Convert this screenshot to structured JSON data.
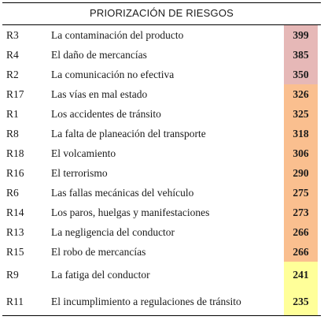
{
  "table": {
    "title": "PRIORIZACIÓN DE RIESGOS",
    "colors": {
      "high": "#e6b8b7",
      "medium": "#fabf8f",
      "low": "#ffff99"
    },
    "rows": [
      {
        "id": "R3",
        "description": "La contaminación del producto",
        "score": "399",
        "level": "high"
      },
      {
        "id": "R4",
        "description": "El daño de mercancías",
        "score": "385",
        "level": "high"
      },
      {
        "id": "R2",
        "description": "La comunicación no efectiva",
        "score": "350",
        "level": "high"
      },
      {
        "id": "R17",
        "description": "Las vías en mal estado",
        "score": "326",
        "level": "medium"
      },
      {
        "id": "R1",
        "description": "Los accidentes de tránsito",
        "score": "325",
        "level": "medium"
      },
      {
        "id": "R8",
        "description": "La falta de planeación del transporte",
        "score": "318",
        "level": "medium"
      },
      {
        "id": "R18",
        "description": "El volcamiento",
        "score": "306",
        "level": "medium"
      },
      {
        "id": "R16",
        "description": "El terrorismo",
        "score": "290",
        "level": "medium"
      },
      {
        "id": "R6",
        "description": "Las fallas mecánicas del vehículo",
        "score": "275",
        "level": "medium"
      },
      {
        "id": "R14",
        "description": "Los paros, huelgas y manifestaciones",
        "score": "273",
        "level": "medium"
      },
      {
        "id": "R13",
        "description": "La negligencia del conductor",
        "score": "266",
        "level": "medium"
      },
      {
        "id": "R15",
        "description": "El robo de mercancías",
        "score": "266",
        "level": "medium"
      },
      {
        "id": "R9",
        "description": "La fatiga del conductor",
        "score": "241",
        "level": "low"
      },
      {
        "id": "R11",
        "description": "El incumplimiento a regulaciones de tránsito",
        "score": "235",
        "level": "low"
      }
    ]
  }
}
